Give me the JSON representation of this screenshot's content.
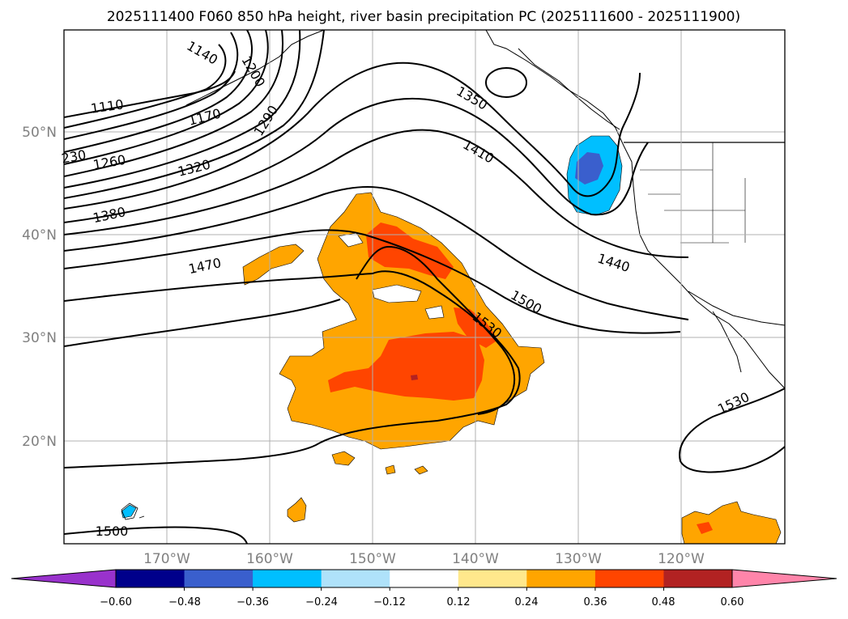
{
  "title": "2025111400 F060 850 hPa height, river basin precipitation PC (2025111600 - 2025111900)",
  "map": {
    "lat_labels": [
      "50°N",
      "40°N",
      "30°N",
      "20°N"
    ],
    "lon_labels": [
      "170°W",
      "160°W",
      "150°W",
      "140°W",
      "130°W",
      "120°W"
    ],
    "contour_labels": [
      "1110",
      "1140",
      "1170",
      "1200",
      "230",
      "1260",
      "1290",
      "1320",
      "1350",
      "1380",
      "1410",
      "1440",
      "1470",
      "1500",
      "1530",
      "1500",
      "1530"
    ]
  },
  "colorbar": {
    "ticks": [
      "−0.60",
      "−0.48",
      "−0.36",
      "−0.24",
      "−0.12",
      "0.12",
      "0.24",
      "0.36",
      "0.48",
      "0.60"
    ],
    "colors": [
      "#9932cc",
      "#00008b",
      "#3a5fcd",
      "#00bfff",
      "#afe2fa",
      "#ffffff",
      "#ffe88c",
      "#ffa500",
      "#ff4500",
      "#b22222",
      "#ff85aa"
    ]
  },
  "colors": {
    "orange": "#ffa500",
    "red_orange": "#ff4500",
    "dark_red": "#b22222",
    "deep_sky_blue": "#00bfff",
    "royal_blue": "#3a5fcd",
    "grid": "#b0b0b0"
  }
}
